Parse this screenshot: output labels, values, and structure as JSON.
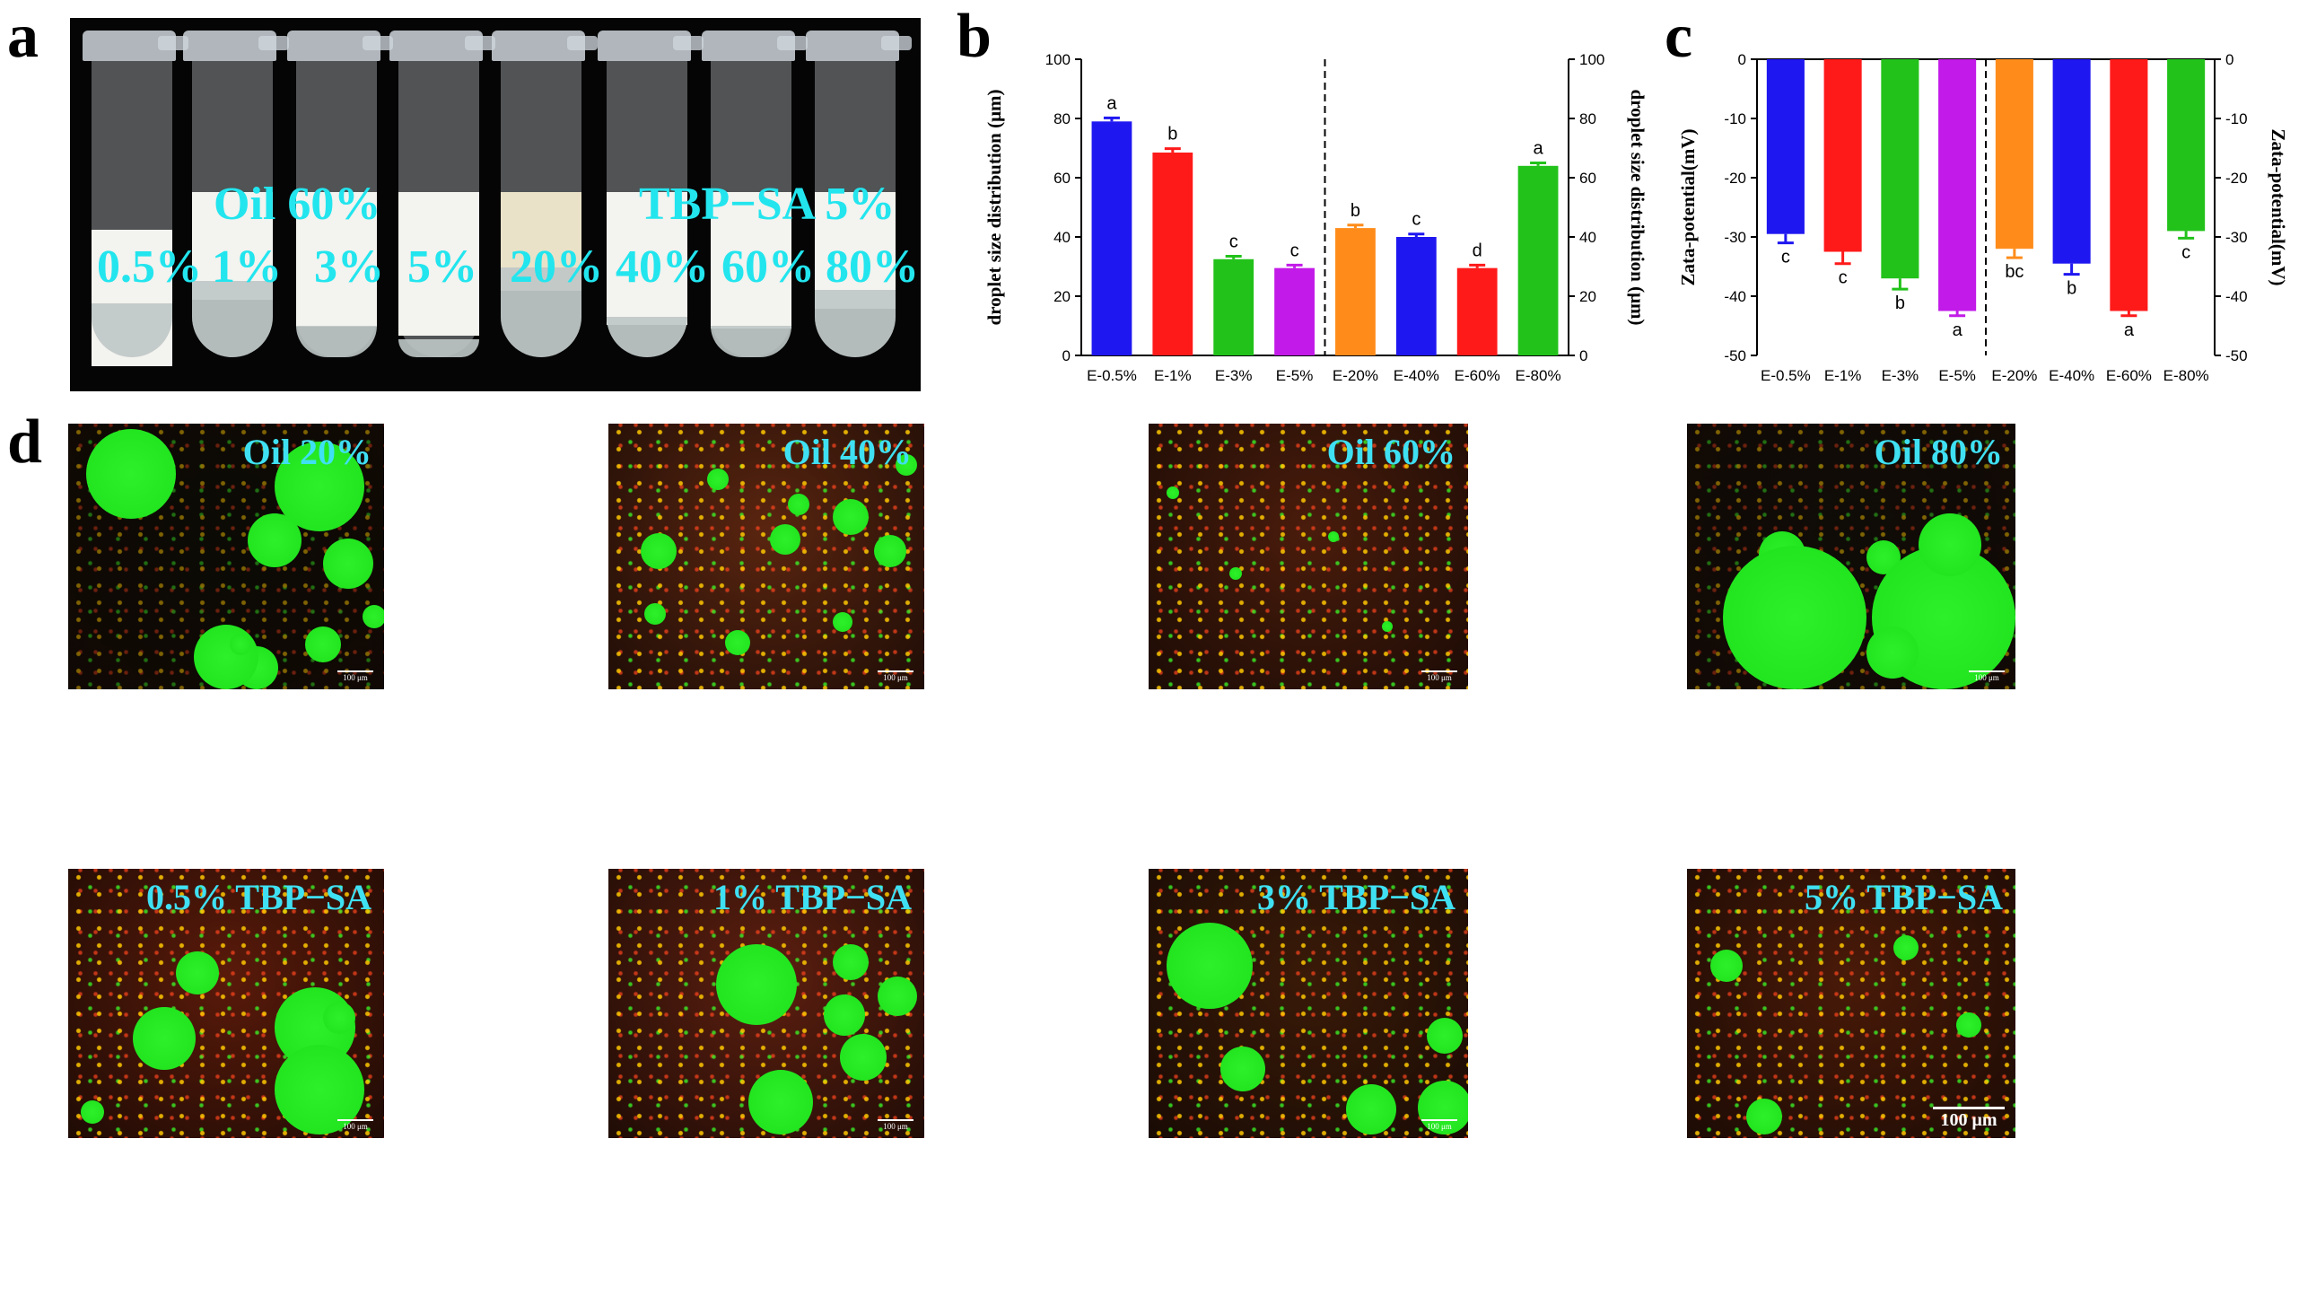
{
  "panels": {
    "a": "a",
    "b": "b",
    "c": "c",
    "d": "d"
  },
  "photo": {
    "oil_text": "Oil 60%",
    "tbp_text": "TBP−SA  5%",
    "tube_labels": [
      "0.5%",
      "1%",
      "3%",
      "5%",
      "20%",
      "40%",
      "60%",
      "80%"
    ]
  },
  "micrographs": [
    {
      "label": "Oil 20%",
      "scale": "100 μm",
      "bg": "#0b0a05"
    },
    {
      "label": "Oil 40%",
      "scale": "100 μm",
      "bg": "#5a2510"
    },
    {
      "label": "Oil 60%",
      "scale": "100 μm",
      "bg": "#4a1c0c"
    },
    {
      "label": "Oil 80%",
      "scale": "100 μm",
      "bg": "#0f0c07"
    },
    {
      "label": "0.5% TBP−SA",
      "scale": "100 μm",
      "bg": "#5a1a0a"
    },
    {
      "label": "1% TBP−SA",
      "scale": "100 μm",
      "bg": "#5e1f10"
    },
    {
      "label": "3% TBP−SA",
      "scale": "100 μm",
      "bg": "#3a1a08"
    },
    {
      "label": "5% TBP−SA",
      "scale": "100 μm",
      "bg": "#4a1a08"
    }
  ],
  "chart_data": [
    {
      "type": "bar",
      "categories": [
        "E-0.5%",
        "E-1%",
        "E-3%",
        "E-5%",
        "E-20%",
        "E-40%",
        "E-60%",
        "E-80%"
      ],
      "values": [
        79,
        68.5,
        32.5,
        29.5,
        43,
        40,
        29.5,
        64
      ],
      "errors": [
        1.2,
        1.3,
        1.0,
        1.0,
        1.0,
        1.0,
        1.0,
        1.0
      ],
      "letters": [
        "a",
        "b",
        "c",
        "c",
        "b",
        "c",
        "d",
        "a"
      ],
      "colors": [
        "#1f17f0",
        "#ff1a1a",
        "#22c21a",
        "#c21ae8",
        "#ff8c1a",
        "#1f17f0",
        "#ff1a1a",
        "#22c21a"
      ],
      "ylabel": "droplet size distribution (μm)",
      "ylabel_right": "droplet size distribution (μm)",
      "ylim": [
        0,
        100
      ],
      "yticks": [
        0,
        20,
        40,
        60,
        80,
        100
      ],
      "divider_after_index": 3
    },
    {
      "type": "bar",
      "categories": [
        "E-0.5%",
        "E-1%",
        "E-3%",
        "E-5%",
        "E-20%",
        "E-40%",
        "E-60%",
        "E-80%"
      ],
      "values": [
        -29.5,
        -32.5,
        -37,
        -42.5,
        -32,
        -34.5,
        -42.5,
        -29
      ],
      "errors": [
        1.5,
        2.0,
        1.8,
        0.8,
        1.5,
        1.8,
        0.8,
        1.2
      ],
      "letters": [
        "c",
        "c",
        "b",
        "a",
        "bc",
        "b",
        "a",
        "c"
      ],
      "colors": [
        "#1f17f0",
        "#ff1a1a",
        "#22c21a",
        "#c21ae8",
        "#ff8c1a",
        "#1f17f0",
        "#ff1a1a",
        "#22c21a"
      ],
      "ylabel": "Zata-potential(mV)",
      "ylabel_right": "Zata-potential(mV)",
      "ylim": [
        -50,
        0
      ],
      "yticks": [
        0,
        -10,
        -20,
        -30,
        -40,
        -50
      ],
      "divider_after_index": 3
    }
  ]
}
